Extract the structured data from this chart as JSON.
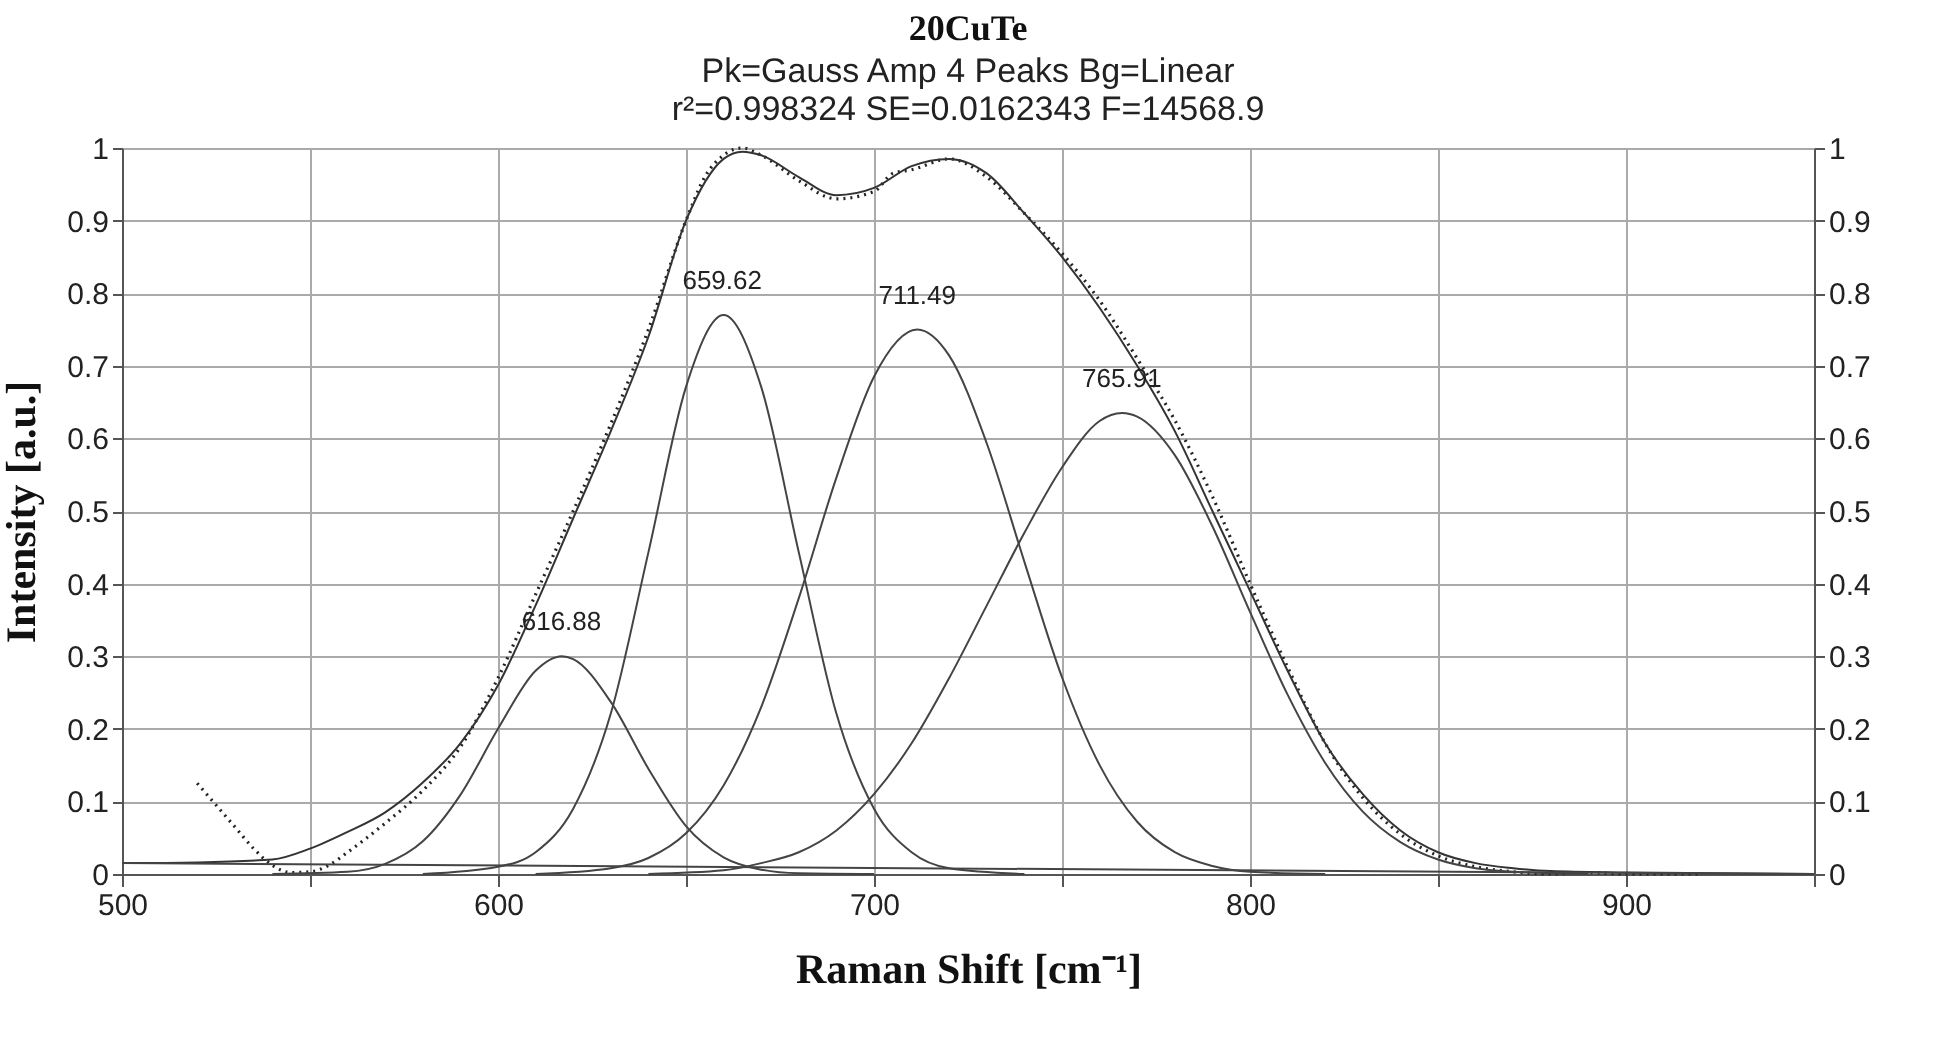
{
  "chart_data": {
    "type": "line",
    "title": "20CuTe",
    "subtitle": "Pk=Gauss Amp  4 Peaks  Bg=Linear\nr²=0.998324  SE=0.0162343  F=14568.9",
    "xlabel": "Raman Shift [cm⁻¹]",
    "ylabel": "Intensity [a.u.]",
    "xlim": [
      500,
      950
    ],
    "xticks": [
      500,
      {
        "value": 550,
        "label": null
      },
      600,
      {
        "value": 650,
        "label": null
      },
      700,
      {
        "value": 750,
        "label": null
      },
      800,
      {
        "value": 850,
        "label": null
      },
      900,
      {
        "value": 950,
        "label": null
      }
    ],
    "ylim": [
      0,
      1
    ],
    "yticks": [
      0,
      0.1,
      0.2,
      0.3,
      0.4,
      0.5,
      0.6,
      0.7,
      0.8,
      0.9,
      1
    ],
    "y2lim": [
      0,
      1
    ],
    "y2ticks": [
      0,
      0.1,
      0.2,
      0.3,
      0.4,
      0.5,
      0.6,
      0.7,
      0.8,
      0.9,
      1
    ],
    "grid": true,
    "annotations": [
      {
        "text": "616.88",
        "x": 616.88,
        "y": 0.3
      },
      {
        "text": "659.62",
        "x": 659.62,
        "y": 0.77
      },
      {
        "text": "711.49",
        "x": 711.49,
        "y": 0.75
      },
      {
        "text": "765.91",
        "x": 765.91,
        "y": 0.635
      }
    ],
    "series": [
      {
        "line_style": "dotted",
        "color": "#222222",
        "x": [
          520,
          525,
          530,
          535,
          540,
          545,
          550,
          555,
          560,
          570,
          580,
          590,
          600,
          610,
          620,
          630,
          640,
          650,
          655,
          660,
          665,
          670,
          680,
          690,
          700,
          705,
          710,
          720,
          730,
          740,
          750,
          760,
          770,
          780,
          790,
          800,
          810,
          820,
          830,
          840,
          850,
          860,
          870,
          880,
          890,
          900,
          920
        ],
        "values": [
          0.125,
          0.095,
          0.065,
          0.035,
          0.012,
          0.002,
          0.003,
          0.012,
          0.03,
          0.07,
          0.115,
          0.175,
          0.27,
          0.385,
          0.5,
          0.62,
          0.75,
          0.9,
          0.96,
          0.99,
          1.0,
          0.99,
          0.955,
          0.93,
          0.94,
          0.965,
          0.97,
          0.985,
          0.96,
          0.91,
          0.855,
          0.79,
          0.71,
          0.625,
          0.52,
          0.4,
          0.285,
          0.18,
          0.105,
          0.055,
          0.025,
          0.01,
          0.003,
          0.0,
          0.002,
          0.0,
          0.0
        ]
      },
      {
        "color": "#333333",
        "x": [
          500,
          520,
          540,
          550,
          560,
          570,
          580,
          590,
          600,
          610,
          620,
          630,
          640,
          650,
          660,
          665,
          670,
          680,
          690,
          700,
          710,
          720,
          730,
          740,
          750,
          760,
          770,
          780,
          790,
          800,
          810,
          820,
          830,
          840,
          850,
          860,
          870,
          880,
          900,
          950
        ],
        "values": [
          0.015,
          0.016,
          0.02,
          0.035,
          0.058,
          0.085,
          0.126,
          0.18,
          0.26,
          0.37,
          0.49,
          0.61,
          0.74,
          0.9,
          0.985,
          0.995,
          0.99,
          0.96,
          0.935,
          0.945,
          0.975,
          0.985,
          0.965,
          0.91,
          0.85,
          0.78,
          0.7,
          0.61,
          0.5,
          0.39,
          0.28,
          0.18,
          0.11,
          0.06,
          0.03,
          0.015,
          0.008,
          0.004,
          0.002,
          0.0
        ]
      },
      {
        "color": "#444444",
        "x": [
          540,
          560,
          570,
          580,
          590,
          600,
          610,
          617,
          620,
          630,
          640,
          650,
          660,
          670,
          680,
          700
        ],
        "values": [
          0.0,
          0.003,
          0.014,
          0.045,
          0.109,
          0.2,
          0.28,
          0.3,
          0.296,
          0.237,
          0.145,
          0.066,
          0.023,
          0.006,
          0.001,
          0.0
        ]
      },
      {
        "color": "#444444",
        "x": [
          580,
          600,
          610,
          620,
          630,
          640,
          650,
          660,
          670,
          680,
          690,
          700,
          710,
          720,
          740
        ],
        "values": [
          0.0,
          0.01,
          0.03,
          0.09,
          0.221,
          0.443,
          0.671,
          0.77,
          0.671,
          0.443,
          0.221,
          0.09,
          0.03,
          0.008,
          0.0
        ]
      },
      {
        "color": "#444444",
        "x": [
          610,
          630,
          640,
          650,
          660,
          670,
          680,
          690,
          700,
          711.5,
          720,
          730,
          740,
          750,
          760,
          770,
          780,
          790,
          800,
          820
        ],
        "values": [
          0.0,
          0.008,
          0.022,
          0.056,
          0.122,
          0.23,
          0.38,
          0.546,
          0.685,
          0.75,
          0.714,
          0.593,
          0.43,
          0.271,
          0.15,
          0.072,
          0.03,
          0.011,
          0.003,
          0.0
        ]
      },
      {
        "color": "#444444",
        "x": [
          640,
          660,
          670,
          680,
          690,
          700,
          710,
          720,
          730,
          740,
          750,
          760,
          766,
          770,
          780,
          790,
          800,
          810,
          820,
          830,
          840,
          850,
          860,
          870,
          890
        ],
        "values": [
          0.0,
          0.005,
          0.015,
          0.03,
          0.06,
          0.11,
          0.18,
          0.27,
          0.37,
          0.47,
          0.56,
          0.624,
          0.635,
          0.63,
          0.577,
          0.479,
          0.361,
          0.247,
          0.153,
          0.086,
          0.044,
          0.02,
          0.008,
          0.003,
          0.0
        ]
      },
      {
        "color": "#444444",
        "x": [
          500,
          950
        ],
        "values": [
          0.015,
          0.0
        ]
      }
    ]
  }
}
